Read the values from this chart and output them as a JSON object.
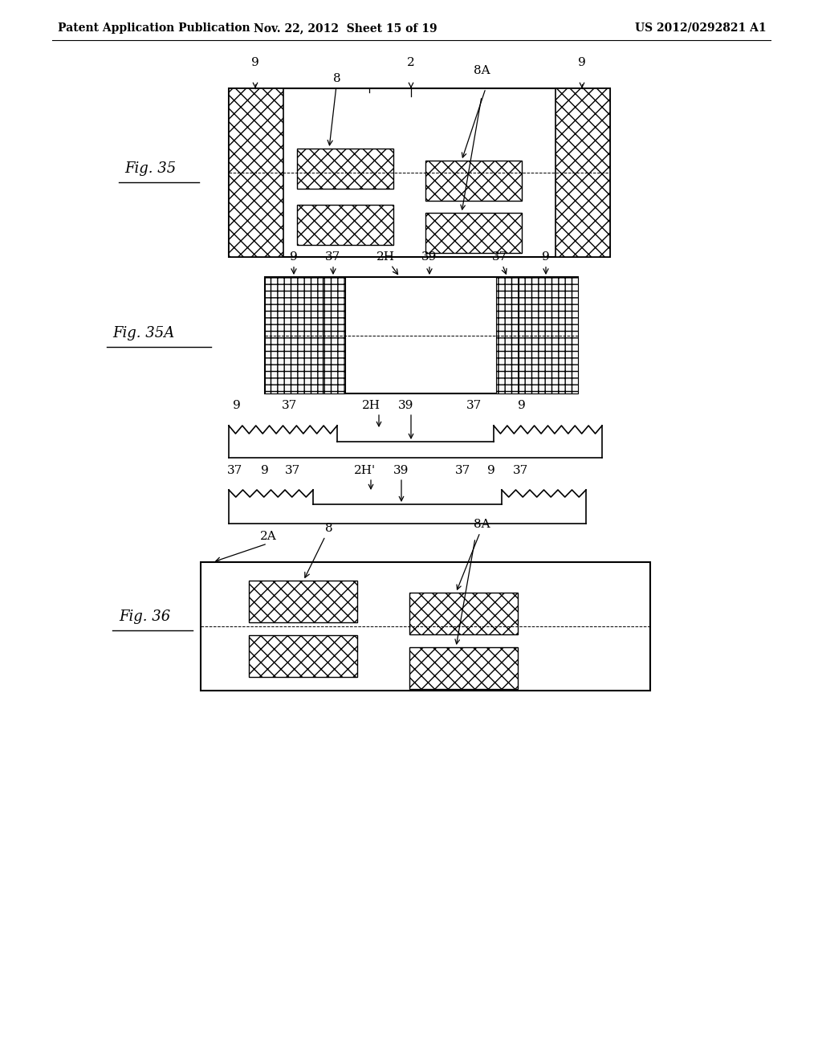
{
  "header_left": "Patent Application Publication",
  "header_mid": "Nov. 22, 2012  Sheet 15 of 19",
  "header_right": "US 2012/0292821 A1",
  "bg_color": "#ffffff",
  "line_color": "#000000"
}
